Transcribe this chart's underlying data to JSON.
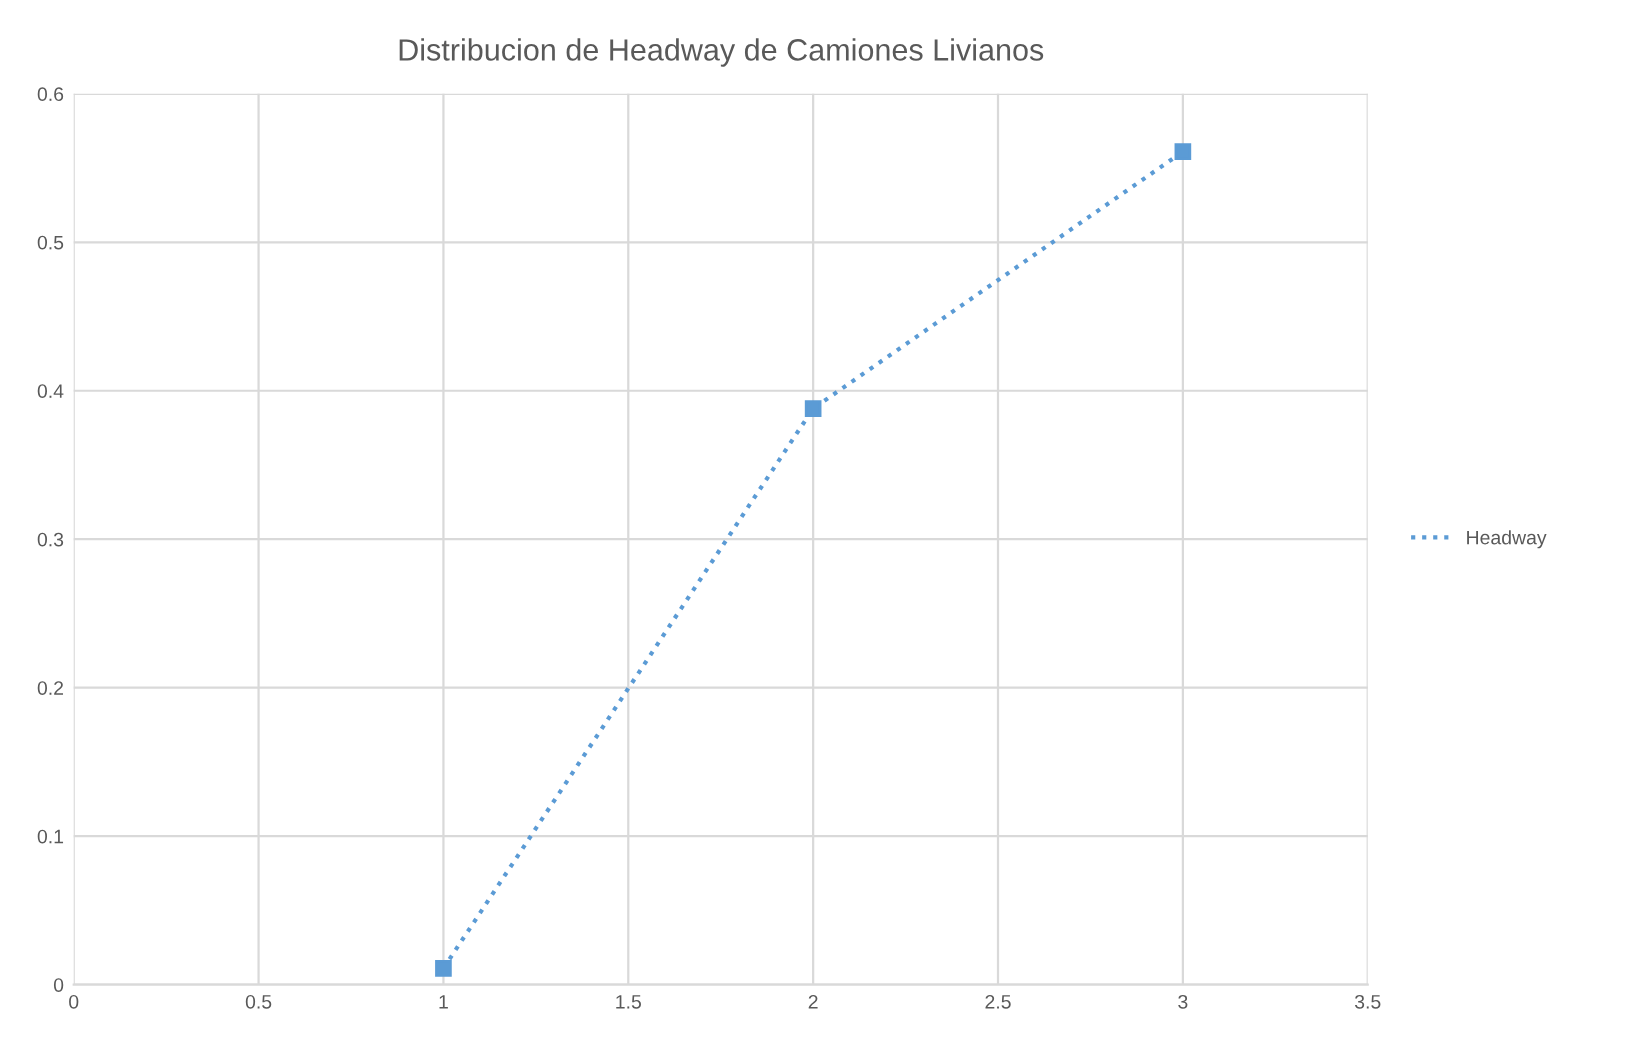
{
  "chart_data": {
    "type": "line",
    "title": "Distribucion de Headway de Camiones Livianos",
    "x": [
      1,
      2,
      3
    ],
    "series": [
      {
        "name": "Headway",
        "color": "#5b9bd5",
        "values": [
          0.011,
          0.388,
          0.561
        ]
      }
    ],
    "xlim": [
      0,
      3.5
    ],
    "xticks": [
      0,
      0.5,
      1,
      1.5,
      2,
      2.5,
      3,
      3.5
    ],
    "ylim": [
      0,
      0.6
    ],
    "yticks": [
      0,
      0.1,
      0.2,
      0.3,
      0.4,
      0.5,
      0.6
    ],
    "grid": true,
    "legend": "right",
    "marker": "square",
    "line_style": "dotted"
  }
}
